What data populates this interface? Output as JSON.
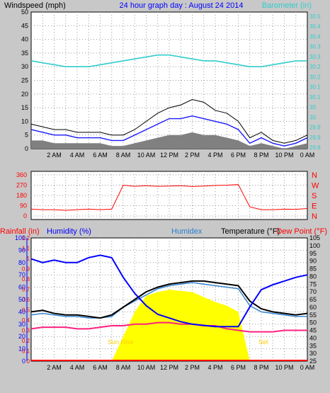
{
  "header": {
    "windspeed_label": "Windspeed (mph)",
    "title": "24 hour graph day : August 24 2014",
    "barometer_label": "Barometer (in)"
  },
  "lower_header": {
    "rainfall": "Rainfall (in)",
    "humidity": "Humidity (%)",
    "humidex": "Humidex",
    "temperature": "Temperature (°F)",
    "dewpoint": "Dew Point (°F)"
  },
  "annotations": {
    "sunrise": "Sun Rise",
    "sunset": "Set"
  },
  "colors": {
    "background": "#c8c8c8",
    "plot_bg": "#ffffff",
    "wind_gust": "#000000",
    "wind_avg": "#1a1aff",
    "wind_min": "#808080",
    "barometer": "#33cccc",
    "direction": "#ff0000",
    "humidity": "#0000ff",
    "humidex": "#2a7fd0",
    "temperature": "#000000",
    "dewpoint": "#ff2080",
    "solar": "#ffff00",
    "rainfall": "#ff0000",
    "title": "#0000ff"
  },
  "x_ticks": [
    "2 AM",
    "4 AM",
    "6 AM",
    "8 AM",
    "10 AM",
    "12 PM",
    "2 PM",
    "4 PM",
    "6 PM",
    "8 PM",
    "10 PM",
    "0 AM"
  ],
  "chart_data": [
    {
      "type": "line",
      "title": "24 hour graph day : August 24 2014",
      "ylabel": "Windspeed (mph)",
      "y2label": "Barometer (in)",
      "ylim": [
        0,
        50
      ],
      "y2lim": [
        29.75,
        30.45
      ],
      "yticks": [
        0,
        5,
        10,
        15,
        20,
        25,
        30,
        35,
        40,
        45,
        50
      ],
      "y2ticks": [
        "29.8",
        "29.9",
        "29.9",
        "30",
        "30",
        "30.1",
        "30.1",
        "30.2",
        "30.2",
        "30.3",
        "30.3",
        "30.4",
        "30.4",
        "30.5"
      ],
      "x": [
        0,
        1,
        2,
        3,
        4,
        5,
        6,
        7,
        8,
        9,
        10,
        11,
        12,
        13,
        14,
        15,
        16,
        17,
        18,
        19,
        20,
        21,
        22,
        23,
        24
      ],
      "series": [
        {
          "name": "Wind gust",
          "values": [
            9,
            8,
            7,
            7,
            6,
            6,
            6,
            5,
            5,
            7,
            10,
            13,
            15,
            16,
            18,
            17,
            14,
            13,
            10,
            4,
            6,
            3,
            2,
            3,
            5
          ]
        },
        {
          "name": "Wind average",
          "values": [
            7,
            6,
            5,
            5,
            4,
            4,
            4,
            3,
            3,
            5,
            7,
            9,
            11,
            11,
            12,
            11,
            10,
            9,
            7,
            2,
            4,
            2,
            1,
            2,
            4
          ]
        },
        {
          "name": "Wind lull",
          "values": [
            3,
            3,
            2,
            2,
            2,
            2,
            2,
            1,
            1,
            2,
            3,
            4,
            5,
            5,
            6,
            5,
            5,
            4,
            3,
            1,
            2,
            1,
            0,
            1,
            2
          ]
        },
        {
          "name": "Barometer",
          "values": [
            30.2,
            30.19,
            30.18,
            30.17,
            30.17,
            30.17,
            30.18,
            30.19,
            30.2,
            30.21,
            30.22,
            30.23,
            30.23,
            30.22,
            30.21,
            30.2,
            30.2,
            30.19,
            30.18,
            30.17,
            30.17,
            30.18,
            30.19,
            30.2,
            30.2
          ]
        }
      ]
    },
    {
      "type": "scatter",
      "ylim": [
        0,
        360
      ],
      "yticks": [
        0,
        90,
        180,
        270,
        360
      ],
      "direction_labels": [
        "N",
        "W",
        "S",
        "E",
        "N"
      ],
      "x": [
        0,
        1,
        2,
        3,
        4,
        5,
        6,
        7,
        8,
        9,
        10,
        11,
        12,
        13,
        14,
        15,
        16,
        17,
        18,
        19,
        20,
        21,
        22,
        23,
        24
      ],
      "series": [
        {
          "name": "Wind direction",
          "values": [
            60,
            55,
            55,
            50,
            55,
            60,
            55,
            60,
            270,
            260,
            265,
            260,
            262,
            265,
            258,
            262,
            268,
            270,
            275,
            80,
            55,
            55,
            60,
            58,
            65
          ]
        }
      ]
    },
    {
      "type": "line",
      "y_rain_lim": [
        0,
        1.2
      ],
      "y_rain_ticks": [
        0,
        0.1,
        0.2,
        0.3,
        0.4,
        0.5,
        0.6,
        0.7,
        0.8,
        0.9,
        1,
        1.1,
        1.2
      ],
      "y_hum_lim": [
        0,
        100
      ],
      "y_hum_ticks": [
        0,
        10,
        20,
        30,
        40,
        50,
        60,
        70,
        80,
        90,
        100
      ],
      "y_temp_lim": [
        25,
        105
      ],
      "y_temp_ticks": [
        25,
        30,
        35,
        40,
        45,
        50,
        55,
        60,
        65,
        70,
        75,
        80,
        85,
        90,
        95,
        100,
        105
      ],
      "x": [
        0,
        1,
        2,
        3,
        4,
        5,
        6,
        7,
        8,
        9,
        10,
        11,
        12,
        13,
        14,
        15,
        16,
        17,
        18,
        19,
        20,
        21,
        22,
        23,
        24
      ],
      "series": [
        {
          "name": "Humidity",
          "values": [
            83,
            80,
            82,
            80,
            80,
            84,
            86,
            84,
            68,
            55,
            45,
            38,
            35,
            32,
            30,
            29,
            28,
            28,
            28,
            44,
            58,
            62,
            65,
            68,
            70
          ]
        },
        {
          "name": "Temperature",
          "values": [
            57,
            58,
            56,
            55,
            55,
            54,
            53,
            55,
            60,
            65,
            70,
            73,
            75,
            76,
            77,
            77,
            76,
            75,
            74,
            64,
            59,
            57,
            56,
            55,
            56
          ]
        },
        {
          "name": "Humidex",
          "values": [
            55,
            56,
            55,
            54,
            54,
            53,
            53,
            54,
            60,
            64,
            68,
            72,
            74,
            75,
            76,
            75,
            74,
            73,
            72,
            61,
            57,
            56,
            55,
            54,
            54
          ]
        },
        {
          "name": "Dew Point",
          "values": [
            46,
            47,
            47,
            47,
            46,
            46,
            47,
            48,
            48,
            49,
            49,
            50,
            50,
            49,
            49,
            48,
            48,
            46,
            45,
            44,
            44,
            44,
            45,
            45,
            45
          ]
        },
        {
          "name": "Solar",
          "values": [
            0,
            0,
            0,
            0,
            0,
            0,
            0,
            0,
            200,
            400,
            530,
            560,
            580,
            570,
            560,
            520,
            480,
            450,
            400,
            0,
            0,
            0,
            0,
            0,
            0
          ]
        },
        {
          "name": "Rainfall",
          "values": [
            0,
            0,
            0,
            0,
            0,
            0,
            0,
            0,
            0,
            0,
            0,
            0,
            0,
            0,
            0,
            0,
            0,
            0,
            0,
            0,
            0,
            0,
            0,
            0,
            0
          ]
        }
      ]
    }
  ]
}
